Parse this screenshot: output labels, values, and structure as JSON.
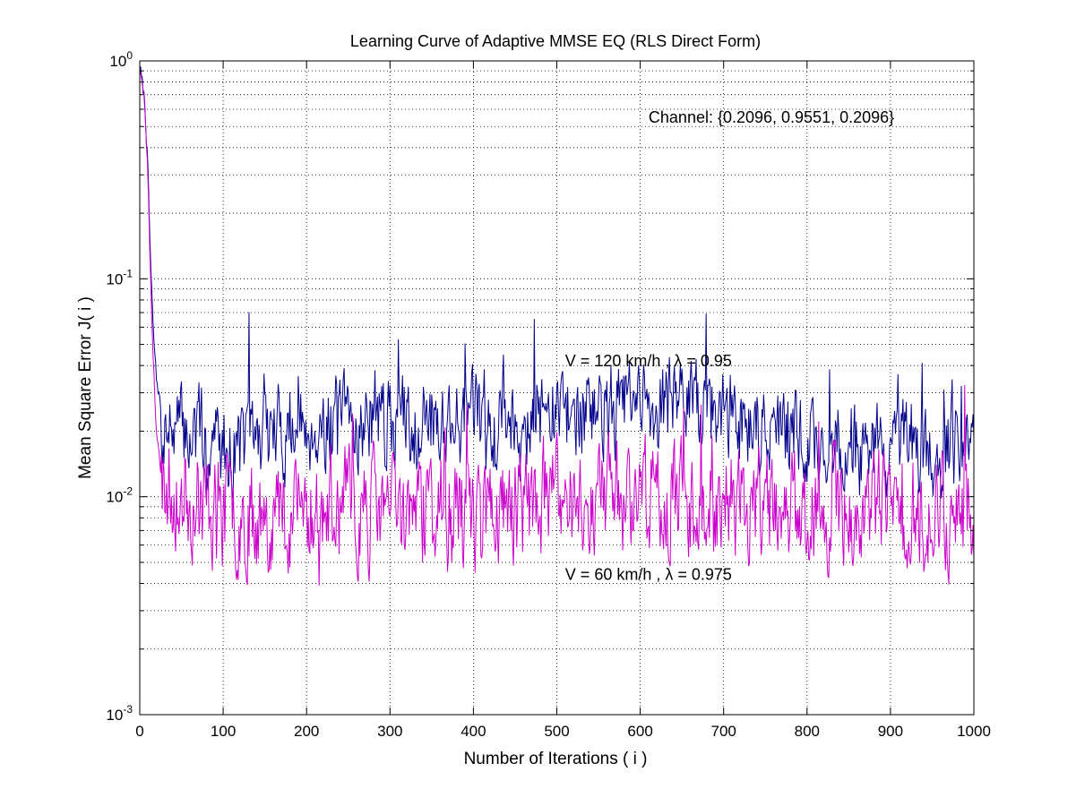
{
  "chart_data": {
    "type": "line",
    "title": "Learning Curve of Adaptive MMSE EQ (RLS Direct Form)",
    "xlabel": "Number of Iterations ( i )",
    "ylabel": "Mean Square Error  J( i )",
    "xlim": [
      0,
      1000
    ],
    "ylim": [
      0.001,
      1
    ],
    "yscale": "log",
    "grid": true,
    "x_ticks": [
      0,
      100,
      200,
      300,
      400,
      500,
      600,
      700,
      800,
      900,
      1000
    ],
    "x_tick_labels": [
      "0",
      "100",
      "200",
      "300",
      "400",
      "500",
      "600",
      "700",
      "800",
      "900",
      "1000"
    ],
    "y_ticks": [
      {
        "value": 1,
        "base": "10",
        "exp": "0"
      },
      {
        "value": 0.1,
        "base": "10",
        "exp": "-1"
      },
      {
        "value": 0.01,
        "base": "10",
        "exp": "-2"
      },
      {
        "value": 0.001,
        "base": "10",
        "exp": "-3"
      }
    ],
    "annotations": [
      {
        "text": "Channel: {0.2096, 0.9551, 0.2096}",
        "x": 610,
        "y": 0.55
      },
      {
        "text": "V = 120 km/h , λ = 0.95",
        "x": 510,
        "y": 0.042
      },
      {
        "text": "V = 60 km/h , λ = 0.975",
        "x": 510,
        "y": 0.0044
      }
    ],
    "series": [
      {
        "name": "V = 120 km/h , λ = 0.95",
        "color": "#00008b",
        "transient": [
          [
            0,
            0.95
          ],
          [
            3,
            0.8
          ],
          [
            6,
            0.65
          ],
          [
            10,
            0.3
          ],
          [
            13,
            0.12
          ],
          [
            16,
            0.06
          ],
          [
            20,
            0.035
          ],
          [
            25,
            0.026
          ]
        ],
        "envelope": [
          [
            25,
            0.022
          ],
          [
            100,
            0.017
          ],
          [
            200,
            0.021
          ],
          [
            300,
            0.022
          ],
          [
            400,
            0.023
          ],
          [
            500,
            0.024
          ],
          [
            600,
            0.026
          ],
          [
            650,
            0.027
          ],
          [
            700,
            0.024
          ],
          [
            800,
            0.018
          ],
          [
            900,
            0.016
          ],
          [
            1000,
            0.017
          ]
        ],
        "noise": 0.18,
        "seed": 7
      },
      {
        "name": "V = 60 km/h , λ = 0.975",
        "color": "#cc00cc",
        "transient": [
          [
            0,
            0.95
          ],
          [
            3,
            0.78
          ],
          [
            6,
            0.62
          ],
          [
            10,
            0.28
          ],
          [
            13,
            0.1
          ],
          [
            16,
            0.045
          ],
          [
            20,
            0.02
          ],
          [
            25,
            0.013
          ]
        ],
        "envelope": [
          [
            25,
            0.012
          ],
          [
            100,
            0.0085
          ],
          [
            200,
            0.0085
          ],
          [
            300,
            0.0088
          ],
          [
            400,
            0.0085
          ],
          [
            500,
            0.0095
          ],
          [
            600,
            0.0105
          ],
          [
            700,
            0.0095
          ],
          [
            800,
            0.0085
          ],
          [
            900,
            0.0085
          ],
          [
            1000,
            0.0088
          ]
        ],
        "noise": 0.22,
        "seed": 23
      }
    ]
  }
}
